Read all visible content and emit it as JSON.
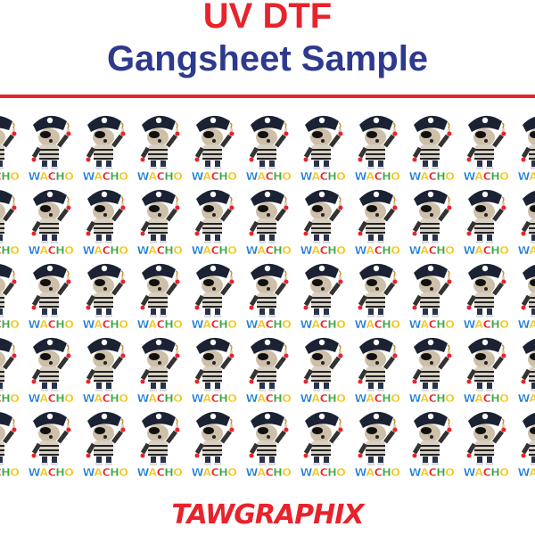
{
  "header": {
    "title_line1": "UV DTF",
    "title_line2": "Gangsheet Sample"
  },
  "colors": {
    "accent_red": "#e8232b",
    "title_blue": "#2e3a8c"
  },
  "sheet": {
    "tile_image": "pirate-dog-icon",
    "tile_label": "WACHO",
    "tile_label_colors": [
      "#1f7fd6",
      "#f5c518",
      "#e8232b",
      "#3aa845",
      "#f5c518"
    ]
  },
  "footer": {
    "brand": "TAWGRAPHIX"
  }
}
